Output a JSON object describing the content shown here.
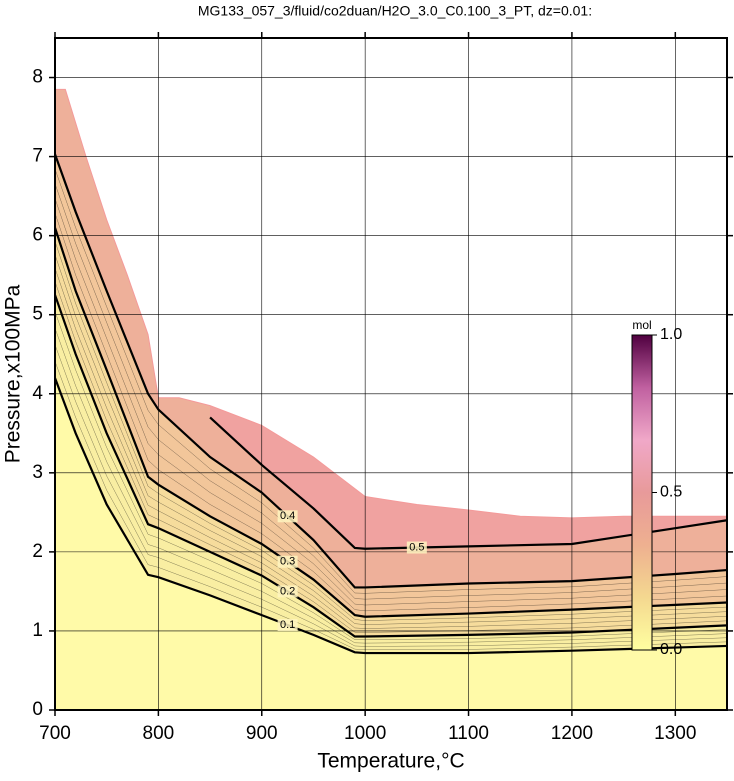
{
  "chart_data": {
    "type": "contour",
    "title": "MG133_057_3/fluid/co2duan/H2O_3.0_C0.100_3_PT, dz=0.01:",
    "xlabel": "Temperature,°C",
    "ylabel": "Pressure,x100MPa",
    "xlim": [
      700,
      1350
    ],
    "ylim": [
      0,
      8.5
    ],
    "xticks": [
      700,
      800,
      900,
      1000,
      1100,
      1200,
      1300
    ],
    "yticks": [
      0,
      1,
      2,
      3,
      4,
      5,
      6,
      7,
      8
    ],
    "grid": true,
    "base_color": "#fffaa8",
    "boundary": {
      "x": [
        700,
        710,
        730,
        750,
        770,
        790,
        800,
        820,
        850,
        880,
        900,
        950,
        1000,
        1050,
        1100,
        1150,
        1200,
        1250,
        1300,
        1350
      ],
      "y": [
        7.85,
        7.85,
        7.0,
        6.2,
        5.5,
        4.75,
        3.95,
        3.95,
        3.85,
        3.7,
        3.6,
        3.2,
        2.7,
        2.6,
        2.53,
        2.45,
        2.43,
        2.45,
        2.45,
        2.45
      ]
    },
    "series": [
      {
        "level": 0.1,
        "color": "#f9eea2",
        "x": [
          700,
          720,
          750,
          790,
          800,
          850,
          900,
          950,
          990,
          1000,
          1100,
          1200,
          1300,
          1350
        ],
        "y": [
          4.2,
          3.5,
          2.6,
          1.71,
          1.68,
          1.45,
          1.2,
          0.95,
          0.73,
          0.72,
          0.72,
          0.75,
          0.79,
          0.81
        ]
      },
      {
        "level": 0.2,
        "color": "#f6dc9c",
        "x": [
          700,
          720,
          750,
          790,
          800,
          850,
          900,
          950,
          990,
          1000,
          1100,
          1200,
          1300,
          1350
        ],
        "y": [
          5.25,
          4.5,
          3.5,
          2.35,
          2.3,
          2.0,
          1.7,
          1.3,
          0.93,
          0.93,
          0.95,
          0.98,
          1.04,
          1.07
        ]
      },
      {
        "level": 0.3,
        "color": "#f2c69a",
        "x": [
          700,
          720,
          750,
          790,
          800,
          850,
          900,
          950,
          990,
          1000,
          1100,
          1200,
          1300,
          1350
        ],
        "y": [
          6.1,
          5.3,
          4.3,
          2.95,
          2.85,
          2.45,
          2.1,
          1.65,
          1.2,
          1.18,
          1.22,
          1.27,
          1.33,
          1.36
        ]
      },
      {
        "level": 0.4,
        "color": "#eeb09a",
        "x": [
          700,
          720,
          750,
          790,
          800,
          850,
          900,
          950,
          990,
          1000,
          1100,
          1200,
          1300,
          1350
        ],
        "y": [
          7.03,
          6.3,
          5.3,
          4.0,
          3.8,
          3.2,
          2.75,
          2.15,
          1.55,
          1.55,
          1.6,
          1.63,
          1.72,
          1.77
        ]
      },
      {
        "level": 0.5,
        "color": "#f0a2a0",
        "x": [
          850,
          900,
          950,
          990,
          1000,
          1100,
          1200,
          1300,
          1350
        ],
        "y": [
          3.7,
          3.1,
          2.55,
          2.05,
          2.04,
          2.07,
          2.1,
          2.3,
          2.4
        ]
      }
    ],
    "colorbar": {
      "label": "mol",
      "clim": [
        0,
        1
      ],
      "colors": [
        "#ffffa0",
        "#f4d890",
        "#eeb090",
        "#e89a9a",
        "#f0a8c8",
        "#c060a0",
        "#500040"
      ],
      "ticks": [
        {
          "value": 0,
          "label": "0.0"
        },
        {
          "value": 0.5,
          "label": "0.5"
        },
        {
          "value": 1,
          "label": "1.0"
        }
      ]
    }
  }
}
